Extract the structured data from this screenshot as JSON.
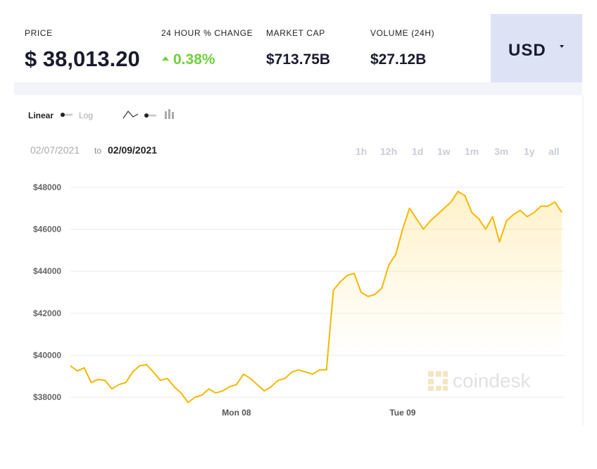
{
  "header": {
    "stats": [
      {
        "label": "PRICE",
        "value": "$ 38,013.20"
      },
      {
        "label": "24 HOUR % CHANGE",
        "value": "0.38%"
      },
      {
        "label": "MARKET CAP",
        "value": "$713.75B"
      },
      {
        "label": "VOLUME (24H)",
        "value": "$27.12B"
      }
    ],
    "currency": "USD"
  },
  "controls": {
    "scale": [
      "Linear",
      "Log"
    ],
    "date_from": "02/07/2021",
    "date_sep": "to",
    "date_to": "02/09/2021",
    "ranges": [
      "1h",
      "12h",
      "1d",
      "1w",
      "1m",
      "3m",
      "1y",
      "all"
    ]
  },
  "watermark": "coindesk",
  "chart_data": {
    "type": "line",
    "color": "#f5b800",
    "grid": true,
    "categories": [
      null,
      null,
      null,
      null,
      null,
      null,
      null,
      null,
      null,
      null,
      null,
      null,
      null,
      null,
      null,
      null,
      null,
      null,
      null,
      null,
      null,
      null,
      null,
      null,
      "Mon 08",
      null,
      null,
      null,
      null,
      null,
      null,
      null,
      null,
      null,
      null,
      null,
      null,
      null,
      null,
      null,
      null,
      null,
      null,
      null,
      null,
      null,
      null,
      null,
      "Tue 09",
      null,
      null,
      null,
      null,
      null,
      null,
      null,
      null,
      null,
      null,
      null,
      null,
      null,
      null,
      null,
      null,
      null,
      null,
      null,
      null,
      null,
      null,
      null
    ],
    "values": [
      39500,
      39250,
      39400,
      38700,
      38850,
      38800,
      38400,
      38600,
      38700,
      39200,
      39500,
      39550,
      39200,
      38800,
      38900,
      38500,
      38200,
      37750,
      38000,
      38100,
      38400,
      38200,
      38300,
      38500,
      38600,
      39100,
      38900,
      38600,
      38300,
      38500,
      38800,
      38900,
      39200,
      39300,
      39200,
      39100,
      39300,
      39300,
      43100,
      43500,
      43800,
      43900,
      43000,
      42800,
      42900,
      43200,
      44300,
      44800,
      46000,
      47000,
      46500,
      46000,
      46400,
      46700,
      47000,
      47300,
      47800,
      47600,
      46800,
      46500,
      46000,
      46600,
      45400,
      46400,
      46700,
      46900,
      46600,
      46800,
      47100,
      47100,
      47300,
      46800
    ],
    "ylim": [
      37500,
      48500
    ],
    "yticks": [
      {
        "value": 38000,
        "label": "$38000"
      },
      {
        "value": 40000,
        "label": "$40000"
      },
      {
        "value": 42000,
        "label": "$42000"
      },
      {
        "value": 44000,
        "label": "$44000"
      },
      {
        "value": 46000,
        "label": "$46000"
      },
      {
        "value": 48000,
        "label": "$48000"
      }
    ]
  }
}
